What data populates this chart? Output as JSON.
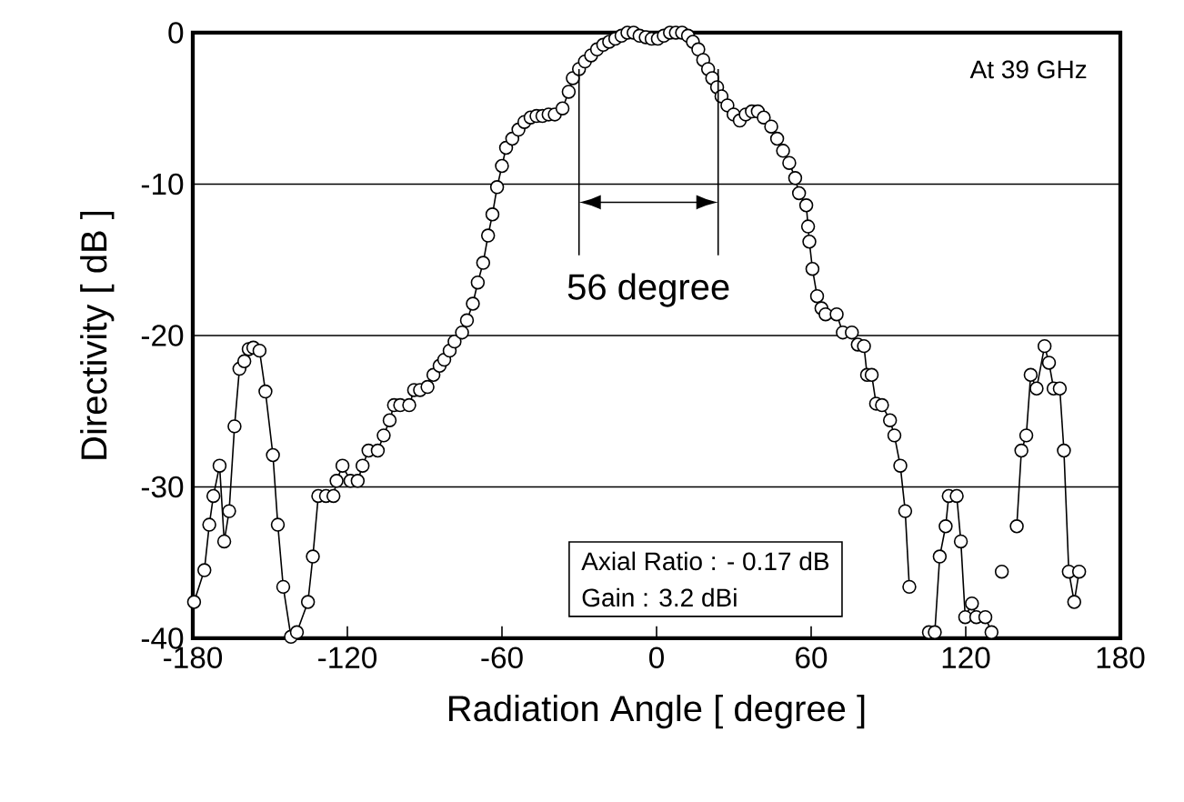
{
  "chart_data": {
    "type": "line",
    "xlabel": "Radiation Angle [ degree ]",
    "ylabel": "Directivity  [ dB ]",
    "xlim": [
      -180,
      180
    ],
    "xticks": [
      -180,
      -120,
      -60,
      0,
      60,
      120,
      180
    ],
    "ylim": [
      -40,
      0
    ],
    "yticks": [
      -40,
      -30,
      -20,
      -10,
      0
    ],
    "grid": "y",
    "marker": "circle",
    "line_style": "solid",
    "series": [
      {
        "color": "#000000",
        "x": [
          -179.5,
          -175.5,
          -173.6,
          -172,
          -169.6,
          -167.8,
          -165.9,
          -163.8,
          -161.9,
          -160,
          -158.3,
          -156.5,
          -154.1,
          -151.8,
          -148.9,
          -147,
          -144.9,
          -141.9,
          -140.8,
          -139.6,
          -135.3,
          -133.4,
          -131.3,
          -128.3,
          -125.4,
          -124.2,
          -121.9,
          -118.8,
          -116,
          -114.1,
          -111.8,
          -108.2,
          -105.9,
          -103.6,
          -101.9,
          -99.5,
          -96,
          -94.1,
          -91.8,
          -88.9,
          -86.6,
          -84.2,
          -82.4,
          -80.3,
          -78.4,
          -75.5,
          -73.6,
          -71.3,
          -69.4,
          -67.3,
          -65.4,
          -63.7,
          -61.9,
          -60,
          -58.4,
          -56,
          -53.6,
          -51.3,
          -48.9,
          -46.6,
          -44.3,
          -41.9,
          -39.5,
          -36.5,
          -34.1,
          -32.5,
          -30.1,
          -27.8,
          -25.4,
          -23.1,
          -20.7,
          -18.4,
          -16,
          -13.6,
          -11.3,
          -8.9,
          -6.6,
          -4.2,
          -1.9,
          0.5,
          2.8,
          5.2,
          7.5,
          9.9,
          12.2,
          14.1,
          16.2,
          18.1,
          20,
          21.6,
          23.5,
          25.2,
          27.5,
          29.9,
          32.3,
          34.6,
          37,
          39.3,
          41.6,
          44.5,
          46.8,
          49.1,
          51.5,
          53.8,
          55.3,
          58.1,
          58.8,
          59.3,
          60.5,
          62.3,
          64,
          65.6,
          69.9,
          72.3,
          75.8,
          78.1,
          80.5,
          81.7,
          83.5,
          85.2,
          87.5,
          90.6,
          92.3,
          94.6,
          96.5,
          98.1,
          100.5,
          105.7,
          108,
          109.9,
          112.2,
          113.4,
          116.5,
          118.1,
          119.8,
          122.4,
          124.1,
          127.6,
          130,
          132,
          134,
          136.3,
          139.8,
          141.6,
          143.5,
          145.2,
          147.5,
          150.6,
          152.3,
          154.1,
          156.5,
          158.1,
          160,
          162.1,
          164
        ],
        "values": [
          -37.6,
          -35.5,
          -32.5,
          -30.6,
          -28.6,
          -33.6,
          -31.6,
          -26.0,
          -22.2,
          -21.7,
          -20.9,
          -20.8,
          -21.0,
          -23.7,
          -27.9,
          -32.5,
          -36.6,
          -39.9,
          null,
          -39.6,
          -37.6,
          -34.6,
          -30.6,
          -30.6,
          -30.6,
          -29.6,
          -28.6,
          -29.6,
          -29.6,
          -28.6,
          -27.6,
          -27.6,
          -26.6,
          -25.6,
          -24.6,
          -24.6,
          -24.6,
          -23.6,
          -23.6,
          -23.4,
          -22.6,
          -22.0,
          -21.6,
          -21.0,
          -20.4,
          -19.8,
          -19.0,
          -17.9,
          -16.5,
          -15.2,
          -13.4,
          -12.0,
          -10.2,
          -8.8,
          -7.6,
          -7.0,
          -6.4,
          -5.9,
          -5.6,
          -5.5,
          -5.5,
          -5.4,
          -5.4,
          -5.0,
          -3.9,
          -3.0,
          -2.4,
          -1.9,
          -1.5,
          -1.1,
          -0.8,
          -0.6,
          -0.4,
          -0.2,
          0,
          0,
          -0.2,
          -0.3,
          -0.4,
          -0.4,
          -0.2,
          0,
          0,
          0,
          -0.2,
          -0.6,
          -1.1,
          -1.8,
          -2.4,
          -3.0,
          -3.6,
          -4.2,
          -4.8,
          -5.4,
          -5.8,
          -5.4,
          -5.2,
          -5.2,
          -5.6,
          -6.2,
          -7.0,
          -7.8,
          -8.6,
          -9.6,
          -10.6,
          -11.4,
          -12.8,
          -13.8,
          -15.6,
          -17.4,
          -18.2,
          -18.6,
          -18.6,
          -19.8,
          -19.8,
          -20.6,
          -20.7,
          -22.6,
          -22.6,
          -24.5,
          -24.6,
          -25.6,
          -26.6,
          -28.6,
          -31.6,
          -36.6,
          null,
          -39.6,
          -39.6,
          -34.6,
          -32.6,
          -30.6,
          -30.6,
          -33.6,
          -38.6,
          -37.7,
          -38.6,
          -38.6,
          -39.6,
          null,
          -35.6,
          null,
          -32.6,
          -27.6,
          -26.6,
          -22.6,
          -23.5,
          -20.7,
          -21.8,
          -23.5,
          -23.5,
          -27.6,
          -35.6,
          -37.6,
          -35.6
        ]
      }
    ],
    "annotations": [
      "At 39 GHz",
      {
        "text": "56 degree",
        "x": -30.1,
        "y": -2.4
      },
      "Axial Ratio  : - 0.17 dB",
      "Gain  : 3.2 dBi"
    ]
  }
}
